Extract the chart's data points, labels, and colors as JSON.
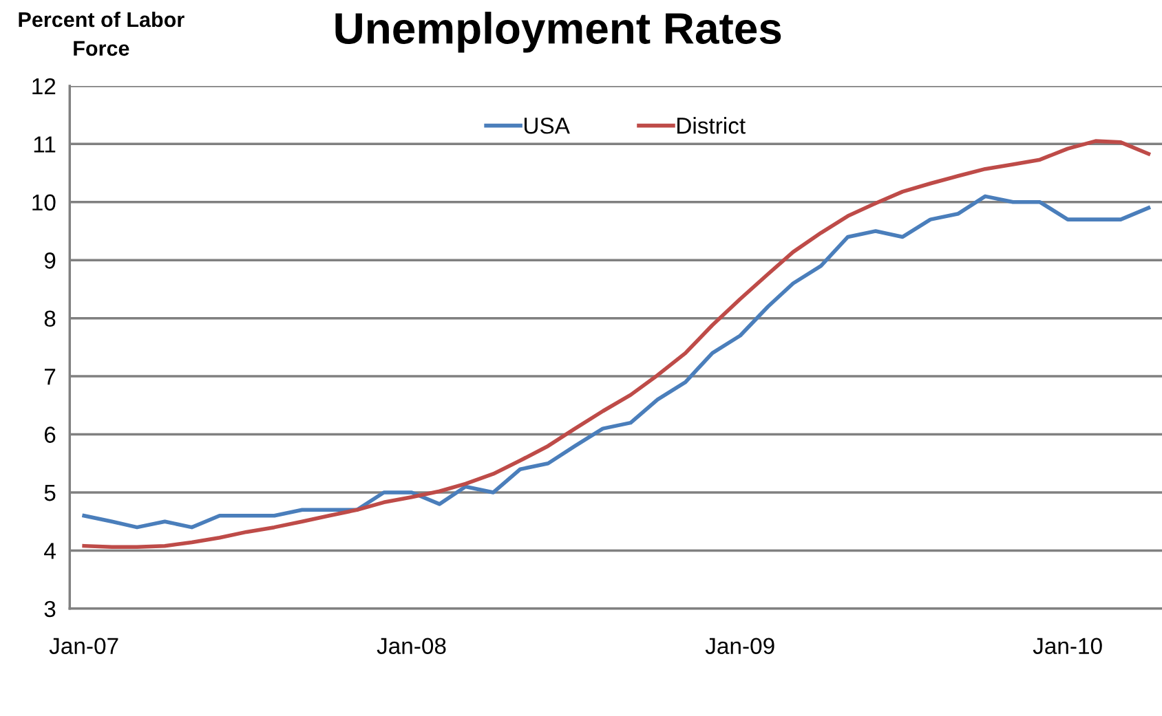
{
  "chart_data": {
    "type": "line",
    "title": "Unemployment Rates",
    "ylabel": "Percent of Labor\nForce",
    "x": [
      "2007-01",
      "2007-02",
      "2007-03",
      "2007-04",
      "2007-05",
      "2007-06",
      "2007-07",
      "2007-08",
      "2007-09",
      "2007-10",
      "2007-11",
      "2007-12",
      "2008-01",
      "2008-02",
      "2008-03",
      "2008-04",
      "2008-05",
      "2008-06",
      "2008-07",
      "2008-08",
      "2008-09",
      "2008-10",
      "2008-11",
      "2008-12",
      "2009-01",
      "2009-02",
      "2009-03",
      "2009-04",
      "2009-05",
      "2009-06",
      "2009-07",
      "2009-08",
      "2009-09",
      "2009-10",
      "2009-11",
      "2009-12",
      "2010-01",
      "2010-02",
      "2010-03",
      "2010-04"
    ],
    "series": [
      {
        "name": "USA",
        "color": "#4a7ebb",
        "values": [
          4.6,
          4.5,
          4.4,
          4.5,
          4.4,
          4.6,
          4.6,
          4.6,
          4.7,
          4.7,
          4.7,
          5.0,
          5.0,
          4.8,
          5.1,
          5.0,
          5.4,
          5.5,
          5.8,
          6.1,
          6.2,
          6.6,
          6.9,
          7.4,
          7.7,
          8.2,
          8.6,
          8.9,
          9.4,
          9.5,
          9.4,
          9.7,
          9.8,
          10.1,
          10.0,
          10.0,
          9.7,
          9.7,
          9.7,
          9.9
        ]
      },
      {
        "name": "District",
        "color": "#be4b48",
        "values": [
          4.08,
          4.06,
          4.06,
          4.08,
          4.14,
          4.22,
          4.32,
          4.4,
          4.5,
          4.6,
          4.7,
          4.83,
          4.92,
          5.02,
          5.15,
          5.32,
          5.55,
          5.8,
          6.1,
          6.4,
          6.68,
          7.02,
          7.4,
          7.88,
          8.33,
          8.76,
          9.14,
          9.47,
          9.76,
          9.98,
          10.18,
          10.32,
          10.45,
          10.57,
          10.65,
          10.73,
          10.92,
          11.05,
          11.03,
          10.83
        ]
      }
    ],
    "xlim": [
      "2006-12-16",
      "2010-04-16"
    ],
    "xticks": [
      {
        "value": "2007-01",
        "label": "Jan-07"
      },
      {
        "value": "2008-01",
        "label": "Jan-08"
      },
      {
        "value": "2009-01",
        "label": "Jan-09"
      },
      {
        "value": "2010-01",
        "label": "Jan-10"
      }
    ],
    "ylim": [
      3,
      12
    ],
    "yticks": [
      3,
      4,
      5,
      6,
      7,
      8,
      9,
      10,
      11,
      12
    ],
    "grid": "y",
    "legend": "top",
    "marker": "none",
    "line_style": "solid"
  }
}
